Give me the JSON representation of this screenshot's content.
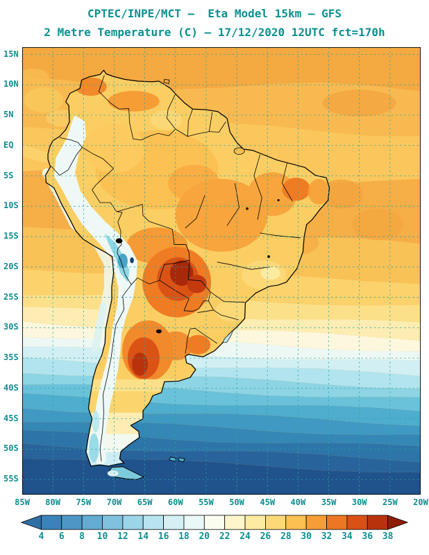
{
  "title": {
    "line1": "CPTEC/INPE/MCT —  Eta Model 15km — GFS",
    "line2": "2 Metre Temperature (C) — 17/12/2020 12UTC fct=170h"
  },
  "map_axes": {
    "lat_ticks": [
      {
        "v": 15,
        "label": "15N"
      },
      {
        "v": 10,
        "label": "10N"
      },
      {
        "v": 5,
        "label": "5N"
      },
      {
        "v": 0,
        "label": "EQ"
      },
      {
        "v": -5,
        "label": "5S"
      },
      {
        "v": -10,
        "label": "10S"
      },
      {
        "v": -15,
        "label": "15S"
      },
      {
        "v": -20,
        "label": "20S"
      },
      {
        "v": -25,
        "label": "25S"
      },
      {
        "v": -30,
        "label": "30S"
      },
      {
        "v": -35,
        "label": "35S"
      },
      {
        "v": -40,
        "label": "40S"
      },
      {
        "v": -45,
        "label": "45S"
      },
      {
        "v": -50,
        "label": "50S"
      },
      {
        "v": -55,
        "label": "55S"
      }
    ],
    "lon_ticks": [
      {
        "v": -85,
        "label": "85W"
      },
      {
        "v": -80,
        "label": "80W"
      },
      {
        "v": -75,
        "label": "75W"
      },
      {
        "v": -70,
        "label": "70W"
      },
      {
        "v": -65,
        "label": "65W"
      },
      {
        "v": -60,
        "label": "60W"
      },
      {
        "v": -55,
        "label": "55W"
      },
      {
        "v": -50,
        "label": "50W"
      },
      {
        "v": -45,
        "label": "45W"
      },
      {
        "v": -40,
        "label": "40W"
      },
      {
        "v": -35,
        "label": "35W"
      },
      {
        "v": -30,
        "label": "30W"
      },
      {
        "v": -25,
        "label": "25W"
      },
      {
        "v": -20,
        "label": "20W"
      }
    ]
  },
  "colorbar": {
    "tick_labels": [
      "4",
      "6",
      "8",
      "10",
      "12",
      "14",
      "16",
      "18",
      "20",
      "22",
      "24",
      "26",
      "28",
      "30",
      "32",
      "34",
      "36",
      "38"
    ],
    "cell_colors": [
      "#2f6fa8",
      "#3a83ba",
      "#4d97c6",
      "#65abd2",
      "#80c1de",
      "#9cd4e8",
      "#b9e4ef",
      "#d4f0f4",
      "#eaf8f7",
      "#f9fcee",
      "#fdf6cb",
      "#fdeba2",
      "#fcd877",
      "#fbbf52",
      "#f69d36",
      "#ec7723",
      "#d95114",
      "#b8330c",
      "#8f1d05"
    ]
  },
  "colors": {
    "title_text": "#0d8f8f",
    "axis_text": "#0d8f8f",
    "grid_lines": "#2aa5a0",
    "map_frame": "#000000"
  }
}
